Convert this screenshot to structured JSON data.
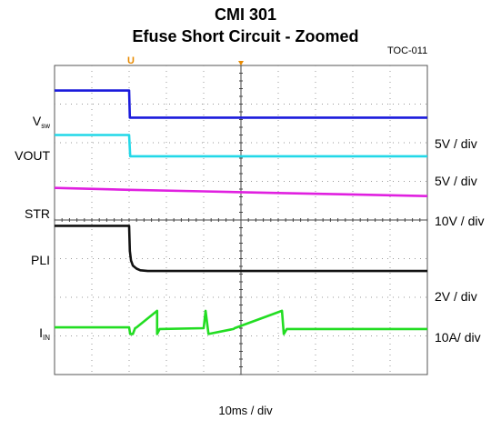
{
  "chart_data": {
    "type": "line",
    "title": "CMI  301",
    "subtitle": "Efuse Short Circuit - Zoomed",
    "figure_id": "TOC-011",
    "xlabel": "10ms / div",
    "time_per_div_ms": 10,
    "x_divisions": 10,
    "y_divisions": 8,
    "trigger_marker": "U",
    "grid": true,
    "x_range_ms": [
      -20,
      80
    ],
    "y_range_div": [
      -4,
      4
    ],
    "series": [
      {
        "name": "Vsw",
        "name_main": "V",
        "name_sub": "sw",
        "scale": "5V / div",
        "color": "#1a1adc",
        "x_ms": [
          -20,
          0,
          0.2,
          80
        ],
        "y_div": [
          3.35,
          3.35,
          2.65,
          2.65
        ]
      },
      {
        "name": "VOUT",
        "scale": "5V / div",
        "color": "#22d8e8",
        "x_ms": [
          -20,
          0,
          0.3,
          80
        ],
        "y_div": [
          2.2,
          2.2,
          1.65,
          1.65
        ]
      },
      {
        "name": "STR",
        "scale": "10V / div",
        "color": "#e020e0",
        "x_ms": [
          -20,
          0,
          20,
          40,
          60,
          80
        ],
        "y_div": [
          0.83,
          0.78,
          0.74,
          0.7,
          0.66,
          0.62
        ]
      },
      {
        "name": "PLI",
        "scale": "2V / div",
        "color": "#111111",
        "x_ms": [
          -20,
          0,
          0.2,
          0.5,
          1,
          1.5,
          2,
          3,
          5,
          80
        ],
        "y_div": [
          -0.15,
          -0.15,
          -0.8,
          -1.05,
          -1.18,
          -1.22,
          -1.26,
          -1.3,
          -1.32,
          -1.32
        ]
      },
      {
        "name": "IIN",
        "name_main": "I",
        "name_sub": "IN",
        "scale": "10A/ div",
        "color": "#22dd22",
        "x_ms": [
          -20,
          0,
          0.3,
          1,
          1.6,
          2,
          7.5,
          7.5,
          8.2,
          20,
          20.5,
          21.3,
          28,
          28.3,
          41,
          41.5,
          42.3,
          80
        ],
        "y_div": [
          -2.78,
          -2.78,
          -2.95,
          -2.95,
          -2.8,
          -2.78,
          -2.35,
          -2.95,
          -2.82,
          -2.8,
          -2.35,
          -2.95,
          -2.82,
          -2.8,
          -2.35,
          -2.95,
          -2.82,
          -2.82
        ]
      }
    ]
  }
}
